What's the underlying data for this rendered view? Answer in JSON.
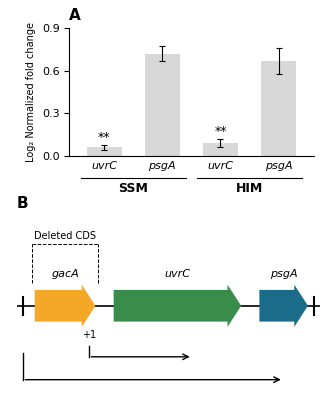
{
  "chart_data": [
    {
      "type": "bar",
      "title": "A",
      "categories": [
        "uvrC",
        "psgA",
        "uvrC",
        "psgA"
      ],
      "values": [
        0.06,
        0.72,
        0.09,
        0.67
      ],
      "errors": [
        0.015,
        0.05,
        0.03,
        0.09
      ],
      "color": "#d8d8d8",
      "ylabel": "Log₂ Normalized fold change",
      "ylim": [
        0,
        0.9
      ],
      "yticks": [
        {
          "value": 0,
          "label": "0.0"
        },
        0.3,
        0.6,
        0.9
      ],
      "significance": [
        "**",
        null,
        "**",
        null
      ],
      "groups": [
        {
          "name": "SSM",
          "categories": [
            "uvrC",
            "psgA"
          ]
        },
        {
          "name": "HIM",
          "categories": [
            "uvrC",
            "psgA"
          ]
        }
      ]
    },
    {
      "type": "gene_map",
      "title": "B",
      "genes": [
        {
          "name": "gacA",
          "color": "#F5A827",
          "deleted": true
        },
        {
          "name": "uvrC",
          "color": "#3A8C4A"
        },
        {
          "name": "psgA",
          "color": "#1B6B8A"
        }
      ],
      "deleted_label": "Deleted CDS",
      "start_label": "+1"
    }
  ]
}
